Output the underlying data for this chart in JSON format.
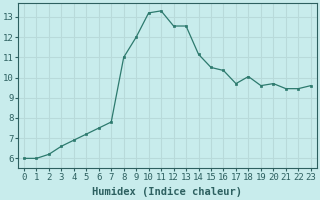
{
  "x": [
    0,
    1,
    2,
    3,
    4,
    5,
    6,
    7,
    8,
    9,
    10,
    11,
    12,
    13,
    14,
    15,
    16,
    17,
    18,
    19,
    20,
    21,
    22,
    23
  ],
  "y": [
    6.0,
    6.0,
    6.2,
    6.6,
    6.9,
    7.2,
    7.5,
    7.8,
    11.0,
    12.0,
    13.2,
    13.3,
    12.55,
    12.55,
    11.15,
    10.5,
    10.35,
    9.7,
    10.05,
    9.6,
    9.7,
    9.45,
    9.45,
    9.6
  ],
  "line_color": "#2d7a6e",
  "marker": "s",
  "marker_size": 2,
  "bg_color": "#c8ecec",
  "grid_color": "#b8dada",
  "xlabel": "Humidex (Indice chaleur)",
  "xlim": [
    -0.5,
    23.5
  ],
  "ylim": [
    5.5,
    13.7
  ],
  "yticks": [
    6,
    7,
    8,
    9,
    10,
    11,
    12,
    13
  ],
  "xticks": [
    0,
    1,
    2,
    3,
    4,
    5,
    6,
    7,
    8,
    9,
    10,
    11,
    12,
    13,
    14,
    15,
    16,
    17,
    18,
    19,
    20,
    21,
    22,
    23
  ],
  "tick_color": "#2d6060",
  "label_color": "#2d6060",
  "font_size": 6.5,
  "xlabel_font_size": 7.5
}
